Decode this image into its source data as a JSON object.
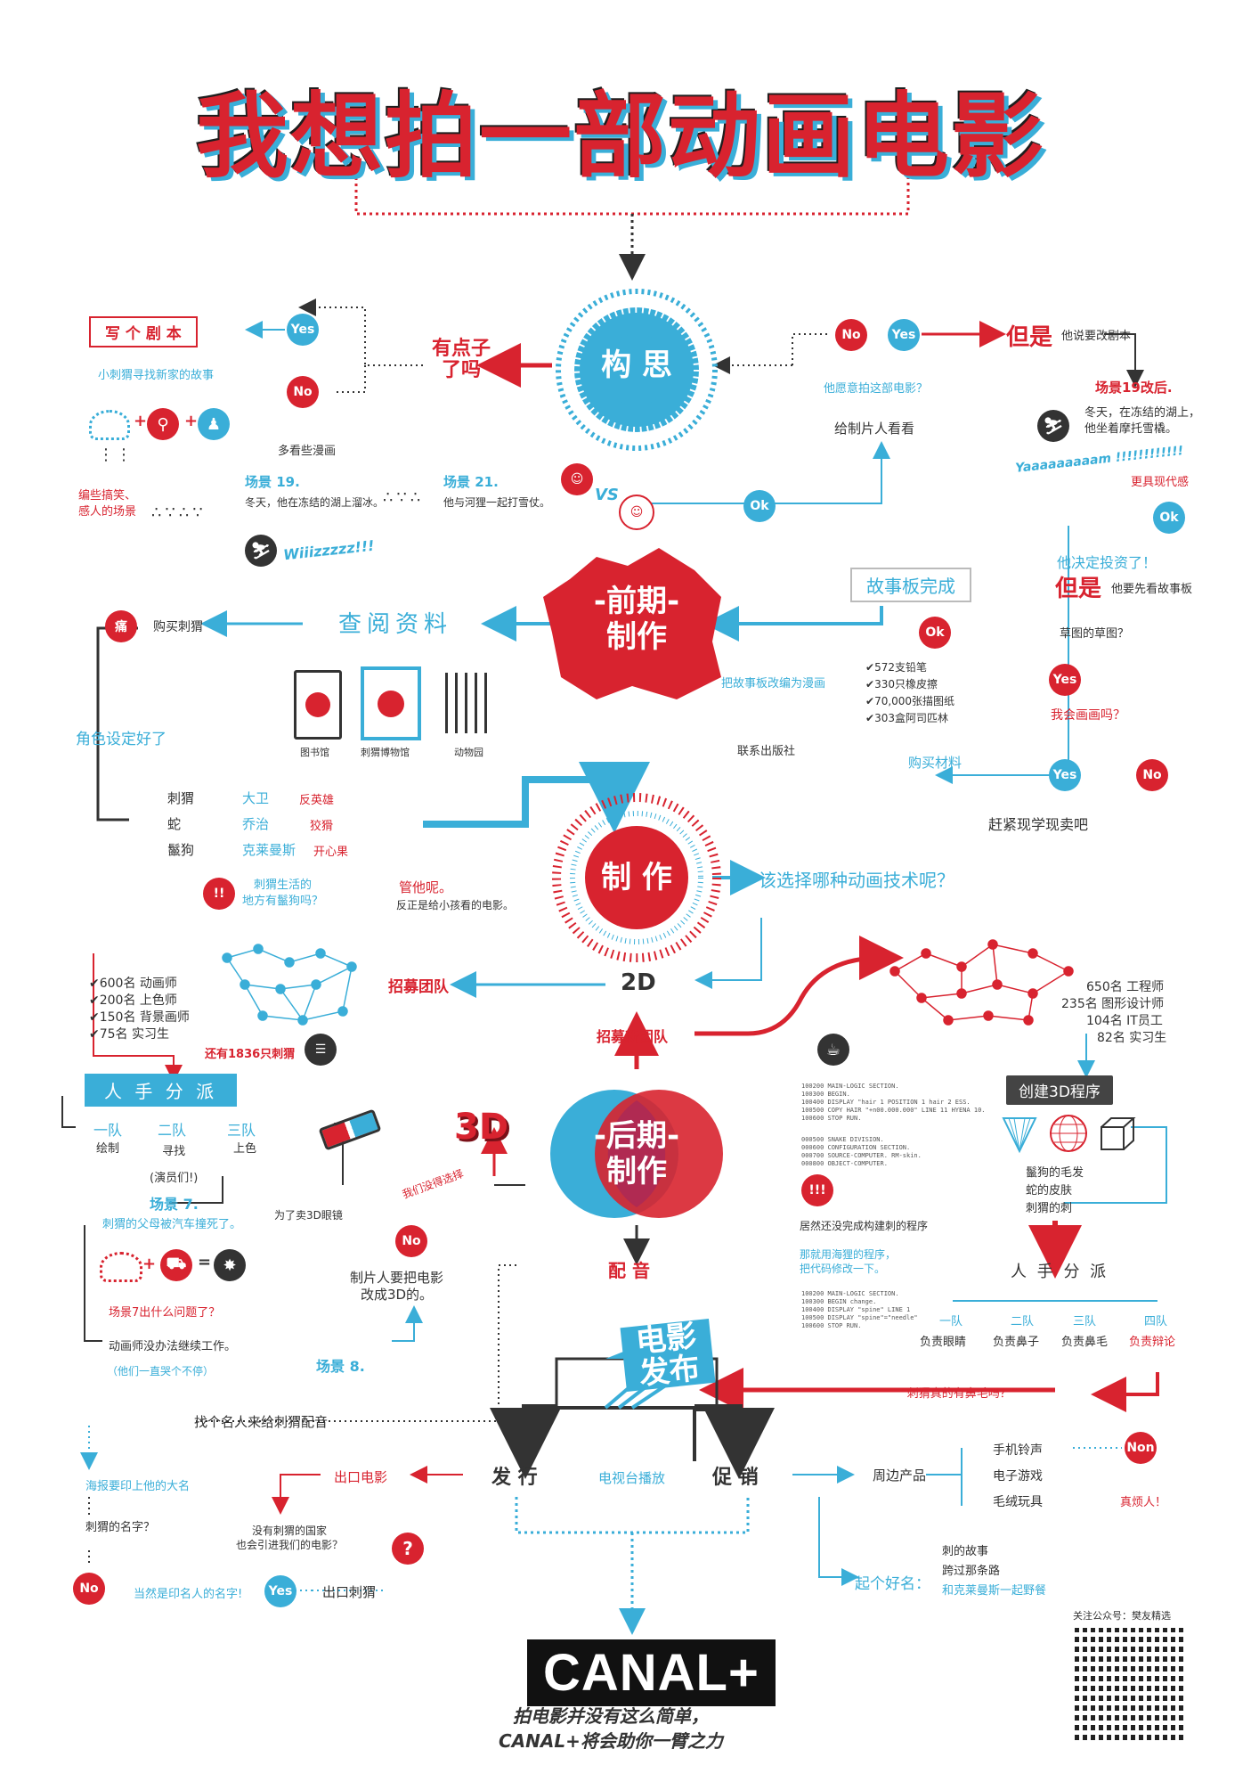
{
  "title": "我想拍一部动画电影",
  "hubs": {
    "concept": "构  思",
    "preproduction": "-前期-\n制作",
    "production": "制  作",
    "postproduction": "-后期-\n制作",
    "release": "电影\n发布"
  },
  "concept": {
    "idea_q": "有点子\n了吗",
    "write_script": "写 个 剧 本",
    "story": "小刺猬寻找新家的故事",
    "more_comics": "多看些漫画",
    "funny_scenes": "编些搞笑、\n感人的场景",
    "scene19": "场景 19.",
    "scene19_text": "冬天，他在冻结的湖上溜冰。",
    "scene21": "场景 21.",
    "scene21_text": "他与河狸一起打雪仗。",
    "wiiii": "Wiiizzzzz!!!",
    "vs": "VS",
    "ok": "Ok",
    "show_producer": "给制片人看看",
    "producer_q": "他愿意拍这部电影？",
    "but": "但是",
    "but_text": "他说要改剧本",
    "scene19_revised": "场景19改后.",
    "scene19_revised_text": "冬天，在冻结的湖上，\n他坐着摩托雪橇。",
    "yaaam": "Yaaaaaaaaam !!!!!!!!!!!!",
    "more_modern": "更具现代感"
  },
  "preproduction": {
    "research": "查阅资料",
    "pain": "痛",
    "buy_hedgehog": "购买刺猬",
    "library": "图书馆",
    "museum": "刺猬博物馆",
    "zoo": "动物园",
    "characters_done": "角色设定好了",
    "storyboard_done": "故事板完成",
    "adapt_comic": "把故事板改编为漫画",
    "contact_publisher": "联系出版社",
    "materials": [
      "572支铅笔",
      "330只橡皮擦",
      "70,000张描图纸",
      "303盒阿司匹林"
    ],
    "buy_materials": "购买材料",
    "investment_ok": "他决定投资了！",
    "but2": "但是",
    "but2_text": "他要先看故事板",
    "draft_q": "草图的草图？",
    "can_draw_q": "我会画画吗？",
    "learn_sell": "赶紧现学现卖吧"
  },
  "characters": {
    "rows": [
      {
        "animal": "刺猬",
        "name": "大卫",
        "role": "反英雄"
      },
      {
        "animal": "蛇",
        "name": "乔治",
        "role": "狡猾"
      },
      {
        "animal": "鬣狗",
        "name": "克莱曼斯",
        "role": "开心果"
      }
    ],
    "habitat_q": "刺猬生活的\n地方有鬣狗吗？",
    "whatever": "管他呢。",
    "whatever_text": "反正是给小孩看的电影。"
  },
  "production": {
    "technique_q": "该选择哪种动画技术呢？",
    "two_d": "2D",
    "recruit": "招募团队",
    "team_2d": [
      "600名 动画师",
      "200名 上色师",
      "150名 背景画师",
      "75名 实习生"
    ],
    "extra_hedgehogs": "还有1836只刺猬",
    "assign": "人 手 分 派",
    "groups": [
      {
        "name": "一队",
        "task": "绘制"
      },
      {
        "name": "二队",
        "task": "寻找\n(演员们!)"
      },
      {
        "name": "三队",
        "task": "上色"
      }
    ],
    "scene7": "场景 7.",
    "scene7_text": "刺猬的父母被汽车撞死了。",
    "scene7_q": "场景7出什么问题了？",
    "animators_continue": "动画师没办法继续工作。",
    "crying": "（他们一直哭个不停）",
    "scene8": "场景 8.",
    "sell_3d": "为了卖3D眼镜",
    "producer_3d": "制片人要把电影\n改成3D的。",
    "no_choice": "我们没得选择"
  },
  "post": {
    "new_team": "招募新团队",
    "team_3d": [
      "650名 工程师",
      "235名 图形设计师",
      "104名 IT员工",
      "82名 实习生"
    ],
    "create_3d": "创建3D程序",
    "features": [
      "鬣狗的毛发",
      "蛇的皮肤",
      "刺猬的刺"
    ],
    "rules_program": "居然还没完成构建刺的程序",
    "old_program": "那就用海狸的程序，\n把代码修改一下。",
    "assign2": "人 手 分 派",
    "groups2": [
      {
        "name": "一队",
        "task": "负责眼睛"
      },
      {
        "name": "二队",
        "task": "负责鼻子"
      },
      {
        "name": "三队",
        "task": "负责鼻毛"
      },
      {
        "name": "四队",
        "task": "负责辩论"
      }
    ],
    "nose_hair_q": "“刺猬真的有鼻毛吗？”",
    "dubbing": "配  音",
    "code_block_1": "100200 MAIN-LOGIC SECTION.\n100300 BEGIN.\n100400     DISPLAY \"hair 1 POSITION 1 hair 2 ESS.\n100500     COPY HAIR \"+n00.000.000\" LINE 11 HYENA 10.\n100600     STOP RUN.",
    "code_block_2": "000500 SNAKE DIVISION.\n000600 CONFIGURATION SECTION.\n000700 SOURCE-COMPUTER. RM-skin.\n000800 OBJECT-COMPUTER.",
    "code_block_3": "100200 MAIN-LOGIC SECTION.\n100300 BEGIN change.\n100400     DISPLAY \"spine\" LINE 1\n100500     DISPLAY \"spine\"=\"needle\"\n100600     STOP RUN."
  },
  "release": {
    "celebrity": "找个名人来给刺猬配音",
    "distribute": "发  行",
    "tv": "电视台播放",
    "promote": "促  销",
    "poster_name": "海报要印上他的大名",
    "hedgehog_name_q": "刺猬的名字？",
    "celebrity_name": "当然是印名人的名字!",
    "export": "出口电影",
    "no_hedgehog_country": "没有刺猬的国家\n也会引进我们的电影？",
    "export_hedgehog": "出口刺猬",
    "merch": "周边产品",
    "merch_items": [
      "手机铃声",
      "电子游戏",
      "毛绒玩具"
    ],
    "pity": "真烦人！",
    "good_name": "起个好名：",
    "titles": [
      "刺的故事",
      "跨过那条路",
      "和克莱曼斯一起野餐"
    ]
  },
  "badges": {
    "yes": "Yes",
    "no": "No",
    "ok": "Ok",
    "non": "Non"
  },
  "footer": {
    "brand": "CANAL+",
    "slogan": "拍电影并没有这么简单，\nCANAL+将会助你一臂之力",
    "qr_label": "关注公众号：樊友精选"
  },
  "colors": {
    "red": "#d8232f",
    "blue": "#3aaed8",
    "dark": "#333333"
  },
  "icons": [
    "search-icon",
    "walker-icon",
    "skater-icon",
    "snowmobile-icon",
    "coffee-icon",
    "car-icon",
    "3d-glasses-icon",
    "book-icon",
    "museum-icon",
    "zoo-icon",
    "cone-icon",
    "sphere-icon",
    "cube-icon",
    "question-icon"
  ]
}
